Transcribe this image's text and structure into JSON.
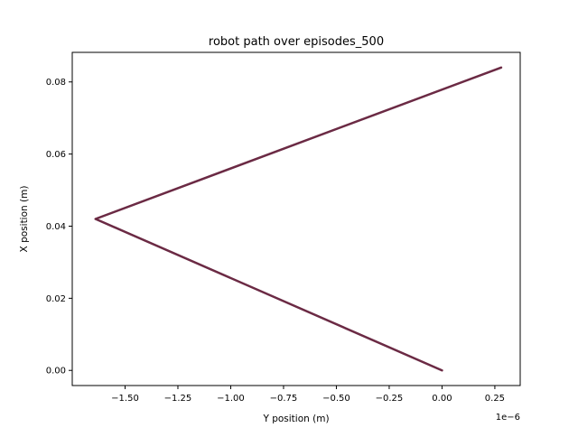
{
  "chart_data": {
    "type": "line",
    "title": "robot path over episodes_500",
    "xlabel": "Y position (m)",
    "ylabel": "X position (m)",
    "x_offset_label": "1e−6",
    "xlim": [
      -1.75,
      0.37
    ],
    "ylim": [
      -0.0042,
      0.0882
    ],
    "x_ticks": [
      -1.5,
      -1.25,
      -1.0,
      -0.75,
      -0.5,
      -0.25,
      0.0,
      0.25
    ],
    "x_tick_labels": [
      "−1.50",
      "−1.25",
      "−1.00",
      "−0.75",
      "−0.50",
      "−0.25",
      "0.00",
      "0.25"
    ],
    "y_ticks": [
      0.0,
      0.02,
      0.04,
      0.06,
      0.08
    ],
    "y_tick_labels": [
      "0.00",
      "0.02",
      "0.04",
      "0.06",
      "0.08"
    ],
    "grid": false,
    "series": [
      {
        "color": "#6b2a44",
        "x": [
          0.0,
          -1.64,
          0.28
        ],
        "y": [
          0.0,
          0.042,
          0.084
        ]
      }
    ]
  }
}
